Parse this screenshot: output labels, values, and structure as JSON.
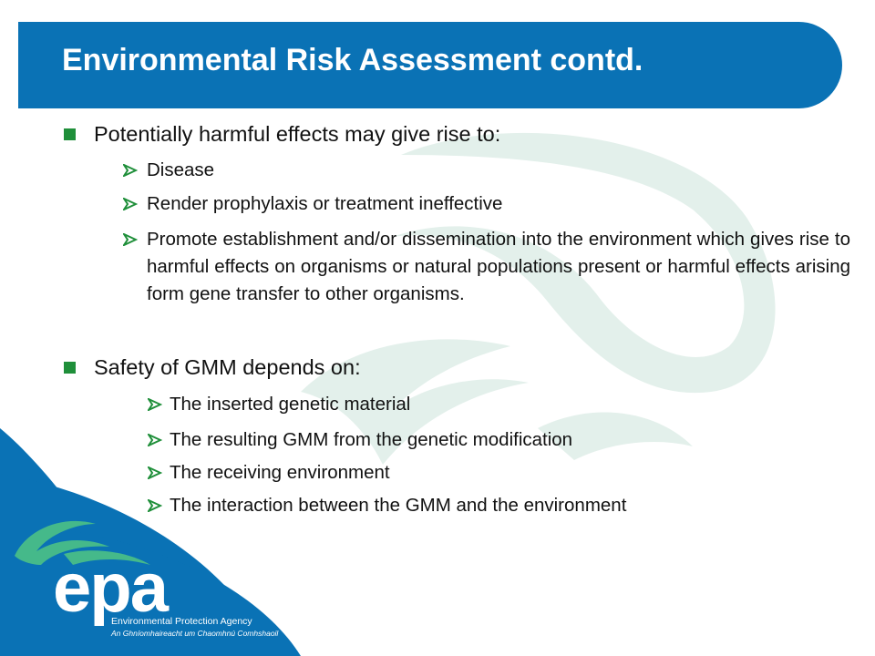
{
  "title": "Environmental Risk Assessment contd.",
  "bullets": [
    {
      "text": "Potentially harmful effects may give rise to:",
      "subitems": [
        "Disease",
        "Render prophylaxis or treatment ineffective",
        "Promote establishment and/or dissemination into the environment which gives rise to harmful effects on organisms or natural populations present or harmful effects arising form gene transfer to other organisms."
      ]
    },
    {
      "text": "Safety of GMM depends on:",
      "subitems": [
        "The inserted genetic material",
        "The resulting GMM from the genetic modification",
        "The receiving environment",
        "The interaction between the GMM and the environment"
      ]
    }
  ],
  "logo": {
    "wordmark": "epa",
    "name": "Environmental Protection Agency",
    "irish_name": "An Ghníomhaireacht um Chaomhnú Comhshaoil"
  },
  "colors": {
    "brand_blue": "#0a72b5",
    "bullet_green": "#1f8f3a",
    "logo_green": "#45b98a",
    "watermark": "#dfeee9"
  }
}
